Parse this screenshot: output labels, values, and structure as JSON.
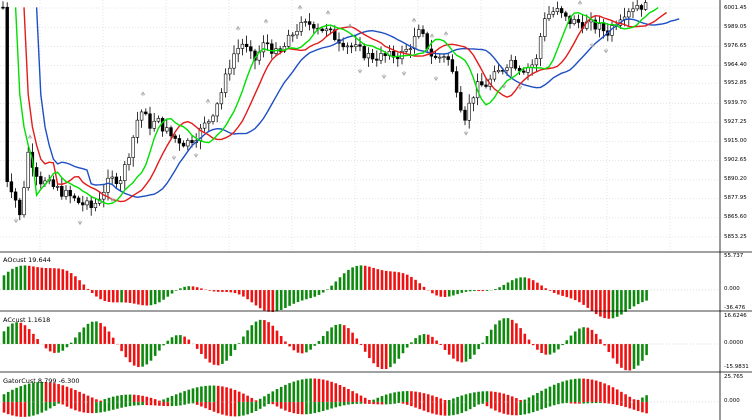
{
  "main_price_axis": [
    "6001.45",
    "5989.05",
    "5976.65",
    "5964.40",
    "5952.85",
    "5939.70",
    "5927.25",
    "5915.00",
    "5902.65",
    "5890.20",
    "5877.95",
    "5865.60",
    "5853.25"
  ],
  "main_price_axis_values": [
    6001.45,
    5989.05,
    5976.65,
    5964.4,
    5952.85,
    5939.7,
    5927.25,
    5915.0,
    5902.65,
    5890.2,
    5877.95,
    5865.6,
    5853.25
  ],
  "panes": [
    {
      "label": "AOcust 19.644",
      "ticks": [
        "55.737",
        "0.000",
        "-36.476"
      ],
      "tick_values": [
        55.737,
        0.0,
        -36.476
      ]
    },
    {
      "label": "ACcust 1.1618",
      "ticks": [
        "16.6246",
        "0.0000",
        "-15.9831"
      ],
      "tick_values": [
        16.6246,
        0.0,
        -15.9831
      ]
    },
    {
      "label": "GatorCust 8.799 -6.300",
      "ticks": [
        "25.765",
        "0.000"
      ],
      "tick_values": [
        25.765,
        0.0
      ]
    }
  ],
  "colors": {
    "bull": "#0d8a0d",
    "bear": "#ee1111",
    "lips": "#00e000",
    "teeth": "#e21b1b",
    "jaw": "#1d4fc4",
    "candle": "#000000",
    "grid": "#c8c8c8",
    "fractal": "#a8a8a8"
  },
  "icons": {
    "fractal_up": "up-arrow-icon",
    "fractal_down": "down-arrow-icon"
  }
}
